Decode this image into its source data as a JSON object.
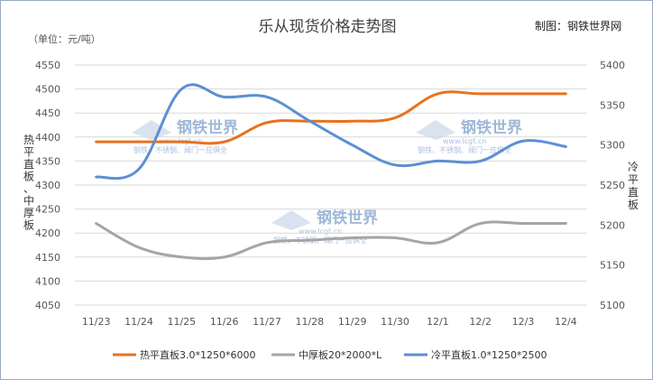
{
  "chart_data": {
    "type": "line",
    "title": "乐从现货价格走势图",
    "credit": "制图：钢铁世界网",
    "unit_label": "（单位：元/吨）",
    "left_axis_title": "热平直板、中厚板",
    "right_axis_title": "冷平直板",
    "categories": [
      "11/23",
      "11/24",
      "11/25",
      "11/26",
      "11/27",
      "11/28",
      "11/29",
      "11/30",
      "12/1",
      "12/2",
      "12/3",
      "12/4"
    ],
    "y_left": {
      "min": 4050,
      "max": 4550,
      "step": 50,
      "ticks": [
        "4050",
        "4100",
        "4150",
        "4200",
        "4250",
        "4300",
        "4350",
        "4400",
        "4450",
        "4500",
        "4550"
      ]
    },
    "y_right": {
      "min": 5100,
      "max": 5400,
      "step": 50,
      "ticks": [
        "5100",
        "5150",
        "5200",
        "5250",
        "5300",
        "5350",
        "5400"
      ]
    },
    "grid": true,
    "legend_position": "bottom",
    "series": [
      {
        "name": "热平直板3.0*1250*6000",
        "axis": "left",
        "color": "#e8711f",
        "values": [
          4390,
          4390,
          4390,
          4390,
          4430,
          4433,
          4433,
          4440,
          4490,
          4490,
          4490,
          4490
        ]
      },
      {
        "name": "中厚板20*2000*L",
        "axis": "left",
        "color": "#a5a5a5",
        "values": [
          4220,
          4170,
          4150,
          4150,
          4180,
          4185,
          4190,
          4190,
          4180,
          4220,
          4220,
          4220
        ]
      },
      {
        "name": "冷平直板1.0*1250*2500",
        "axis": "right",
        "color": "#5b8fd3",
        "values": [
          5260,
          5270,
          5370,
          5360,
          5360,
          5330,
          5300,
          5275,
          5280,
          5280,
          5305,
          5298
        ]
      }
    ],
    "watermark": {
      "brand": "钢铁世界",
      "url": "www.lcgt.cn",
      "tagline": "钢铁、不锈钢、阀门一应俱全"
    }
  }
}
